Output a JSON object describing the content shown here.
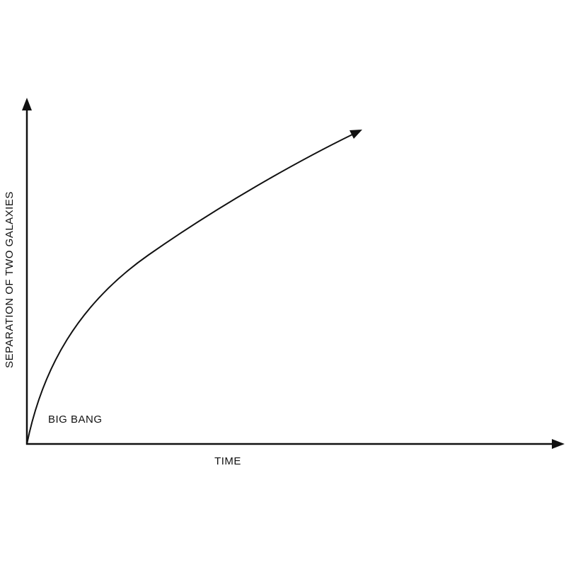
{
  "diagram": {
    "y_axis_label": "SEPARATION OF TWO GALAXIES",
    "x_axis_label": "TIME",
    "annotation": "BIG BANG"
  }
}
